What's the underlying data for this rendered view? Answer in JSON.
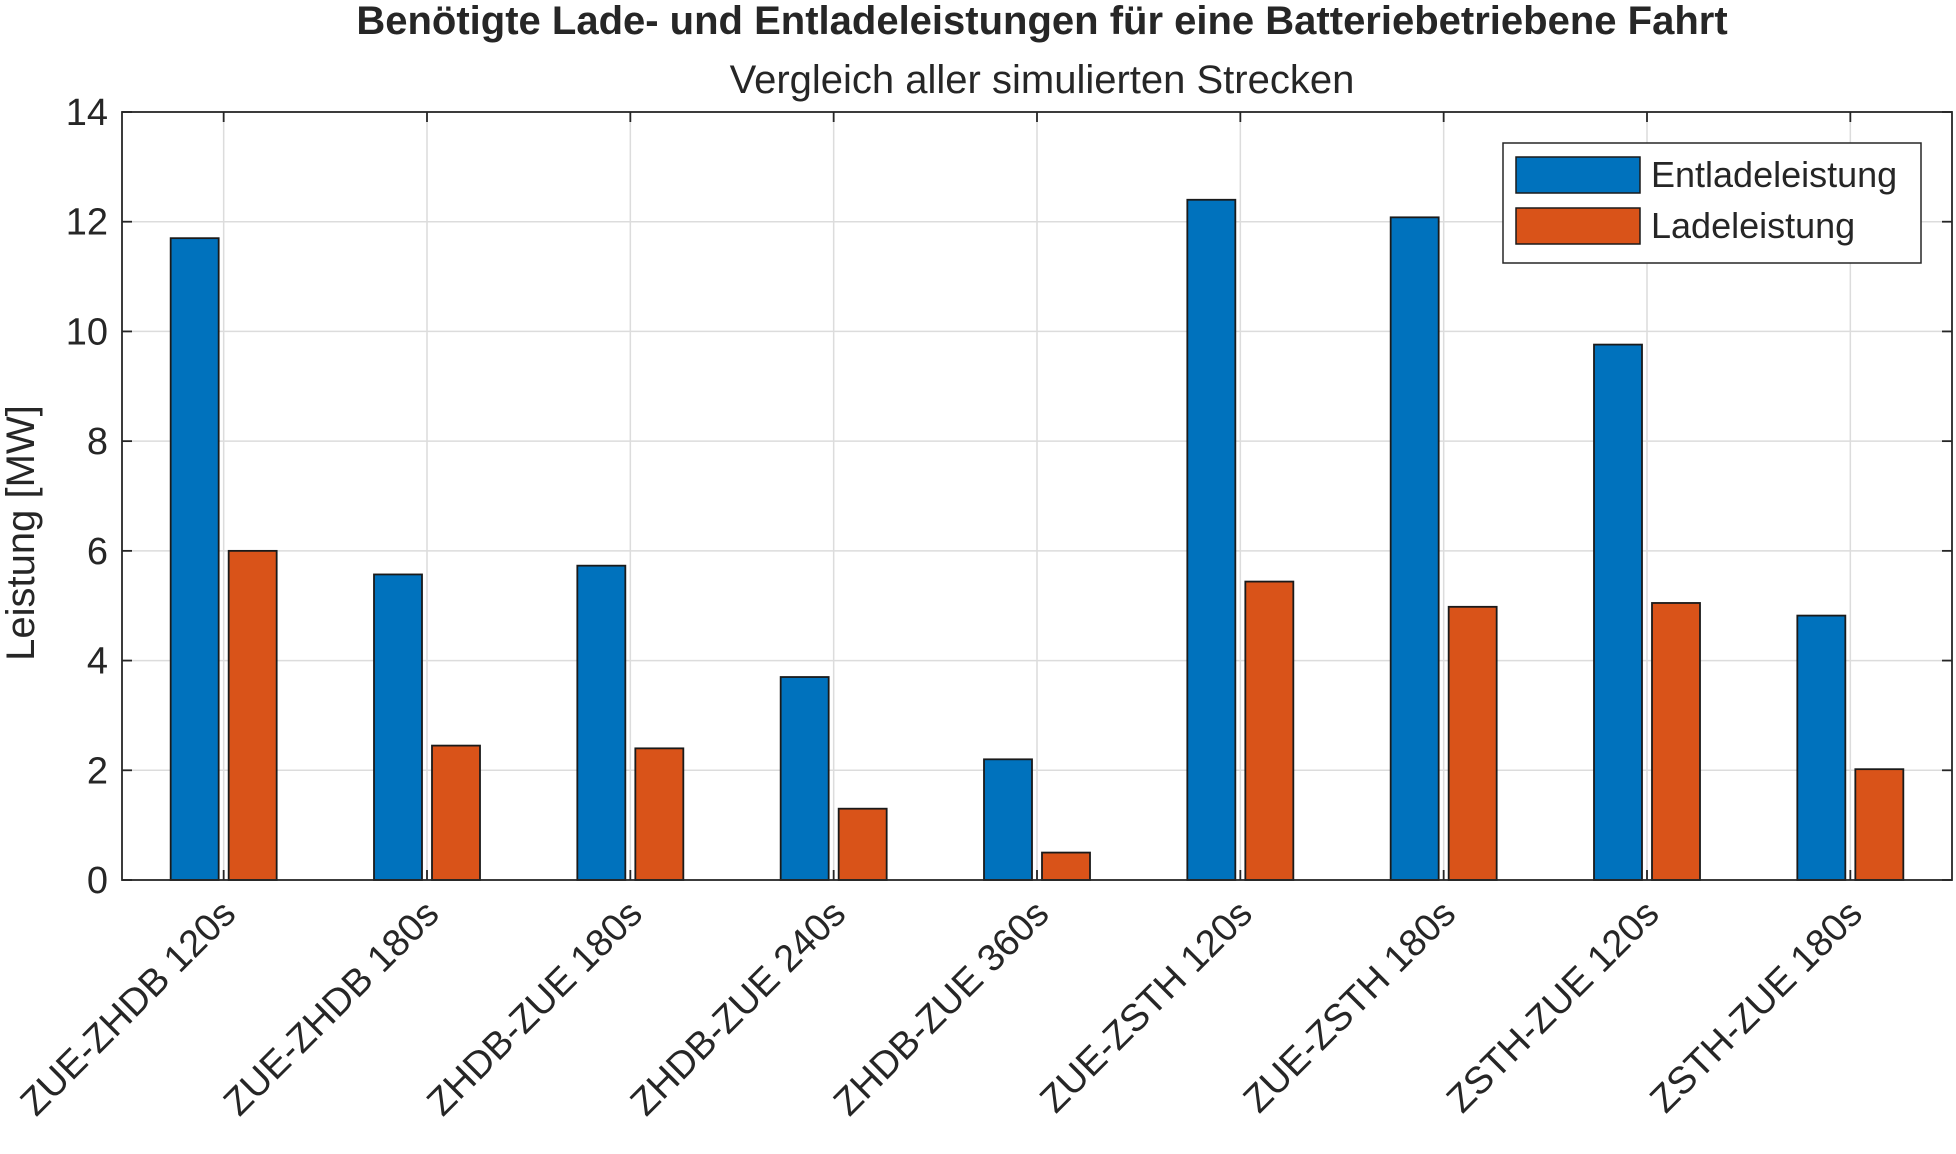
{
  "chart_data": {
    "type": "bar",
    "title": "Benötigte Lade- und Entladeleistungen für eine Batteriebetriebene Fahrt",
    "subtitle": "Vergleich aller simulierten Strecken",
    "xlabel": "",
    "ylabel": "Leistung [MW]",
    "ylim": [
      0,
      14
    ],
    "yticks": [
      "0",
      "2",
      "4",
      "6",
      "8",
      "10",
      "12",
      "14"
    ],
    "grid": true,
    "legend_position": "top-right",
    "categories": [
      "ZUE-ZHDB 120s",
      "ZUE-ZHDB 180s",
      "ZHDB-ZUE 180s",
      "ZHDB-ZUE 240s",
      "ZHDB-ZUE 360s",
      "ZUE-ZSTH 120s",
      "ZUE-ZSTH 180s",
      "ZSTH-ZUE 120s",
      "ZSTH-ZUE 180s"
    ],
    "series": [
      {
        "name": "Entladeleistung",
        "color": "#0072BD",
        "values": [
          11.7,
          5.57,
          5.73,
          3.7,
          2.2,
          12.4,
          12.08,
          9.76,
          4.82
        ]
      },
      {
        "name": "Ladeleistung",
        "color": "#D95319",
        "values": [
          6.0,
          2.45,
          2.4,
          1.3,
          0.5,
          5.44,
          4.98,
          5.05,
          2.02
        ]
      }
    ]
  }
}
